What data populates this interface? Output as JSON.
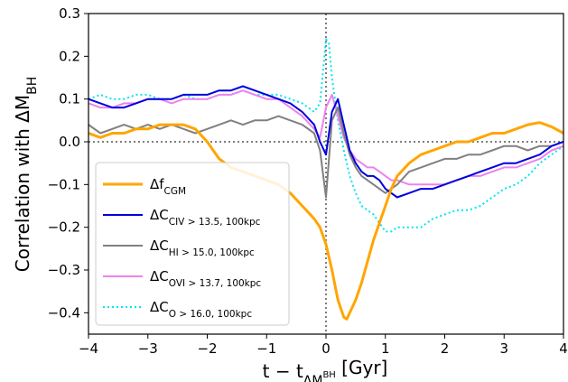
{
  "chart_data": {
    "type": "line",
    "title": "",
    "xlabel": {
      "base": "t − t",
      "sub": "ΔM",
      "subsub": "BH",
      "unit": " [Gyr]"
    },
    "ylabel": {
      "base": "Correlation with ΔM",
      "sub": "BH"
    },
    "xlim": [
      -4,
      4
    ],
    "ylim": [
      -0.45,
      0.3
    ],
    "xticks": [
      -4,
      -3,
      -2,
      -1,
      0,
      1,
      2,
      3,
      4
    ],
    "xtick_labels": [
      "−4",
      "−3",
      "−2",
      "−1",
      "0",
      "1",
      "2",
      "3",
      "4"
    ],
    "yticks": [
      -0.4,
      -0.3,
      -0.2,
      -0.1,
      0.0,
      0.1,
      0.2,
      0.3
    ],
    "ytick_labels": [
      "−0.4",
      "−0.3",
      "−0.2",
      "−0.1",
      "0.0",
      "0.1",
      "0.2",
      "0.3"
    ],
    "reference_lines": {
      "hline": 0.0,
      "vline": 0.0,
      "style": "dotted",
      "color": "#555555"
    },
    "legend_position": "lower-left",
    "series": [
      {
        "name": "Δf",
        "name_sub": "CGM",
        "color": "#ffa500",
        "dash": "solid",
        "width": 3,
        "x": [
          -4,
          -3.8,
          -3.6,
          -3.4,
          -3.2,
          -3,
          -2.8,
          -2.6,
          -2.4,
          -2.2,
          -2,
          -1.9,
          -1.8,
          -1.6,
          -1.4,
          -1.2,
          -1,
          -0.8,
          -0.6,
          -0.4,
          -0.2,
          -0.1,
          0,
          0.1,
          0.2,
          0.3,
          0.35,
          0.4,
          0.5,
          0.6,
          0.7,
          0.8,
          0.9,
          1,
          1.1,
          1.2,
          1.4,
          1.6,
          1.8,
          2,
          2.2,
          2.4,
          2.6,
          2.8,
          3,
          3.2,
          3.4,
          3.6,
          3.8,
          4
        ],
        "y": [
          0.02,
          0.01,
          0.02,
          0.02,
          0.03,
          0.03,
          0.04,
          0.04,
          0.04,
          0.03,
          0.0,
          -0.02,
          -0.04,
          -0.06,
          -0.07,
          -0.08,
          -0.09,
          -0.1,
          -0.12,
          -0.15,
          -0.18,
          -0.2,
          -0.24,
          -0.3,
          -0.37,
          -0.41,
          -0.415,
          -0.4,
          -0.37,
          -0.33,
          -0.28,
          -0.23,
          -0.19,
          -0.15,
          -0.11,
          -0.08,
          -0.05,
          -0.03,
          -0.02,
          -0.01,
          0.0,
          0.0,
          0.01,
          0.02,
          0.02,
          0.03,
          0.04,
          0.045,
          0.035,
          0.02
        ]
      },
      {
        "name": "ΔC",
        "name_sub": "CIV > 13.5, 100kpc",
        "color": "#0000dd",
        "dash": "solid",
        "width": 2,
        "x": [
          -4,
          -3.8,
          -3.6,
          -3.4,
          -3.2,
          -3,
          -2.8,
          -2.6,
          -2.4,
          -2.2,
          -2,
          -1.8,
          -1.6,
          -1.4,
          -1.2,
          -1,
          -0.8,
          -0.6,
          -0.4,
          -0.2,
          -0.1,
          0,
          0.1,
          0.2,
          0.3,
          0.4,
          0.5,
          0.6,
          0.7,
          0.8,
          0.9,
          1,
          1.1,
          1.2,
          1.4,
          1.6,
          1.8,
          2,
          2.2,
          2.4,
          2.6,
          2.8,
          3,
          3.2,
          3.4,
          3.6,
          3.8,
          4
        ],
        "y": [
          0.1,
          0.09,
          0.08,
          0.08,
          0.09,
          0.1,
          0.1,
          0.1,
          0.11,
          0.11,
          0.11,
          0.12,
          0.12,
          0.13,
          0.12,
          0.11,
          0.1,
          0.09,
          0.07,
          0.04,
          0.0,
          -0.03,
          0.07,
          0.1,
          0.04,
          -0.02,
          -0.05,
          -0.07,
          -0.08,
          -0.08,
          -0.09,
          -0.11,
          -0.12,
          -0.13,
          -0.12,
          -0.11,
          -0.11,
          -0.1,
          -0.09,
          -0.08,
          -0.07,
          -0.06,
          -0.05,
          -0.05,
          -0.04,
          -0.03,
          -0.01,
          0.0
        ]
      },
      {
        "name": "ΔC",
        "name_sub": "HI > 15.0, 100kpc",
        "color": "#808080",
        "dash": "solid",
        "width": 2,
        "x": [
          -4,
          -3.8,
          -3.6,
          -3.4,
          -3.2,
          -3,
          -2.8,
          -2.6,
          -2.4,
          -2.2,
          -2,
          -1.8,
          -1.6,
          -1.4,
          -1.2,
          -1,
          -0.8,
          -0.6,
          -0.4,
          -0.2,
          -0.1,
          0,
          0.1,
          0.2,
          0.3,
          0.4,
          0.5,
          0.6,
          0.7,
          0.8,
          0.9,
          1,
          1.1,
          1.2,
          1.4,
          1.6,
          1.8,
          2,
          2.2,
          2.4,
          2.6,
          2.8,
          3,
          3.2,
          3.4,
          3.6,
          3.8,
          4
        ],
        "y": [
          0.04,
          0.02,
          0.03,
          0.04,
          0.03,
          0.04,
          0.03,
          0.04,
          0.03,
          0.02,
          0.03,
          0.04,
          0.05,
          0.04,
          0.05,
          0.05,
          0.06,
          0.05,
          0.04,
          0.02,
          -0.02,
          -0.13,
          0.05,
          0.08,
          0.02,
          -0.03,
          -0.06,
          -0.08,
          -0.09,
          -0.1,
          -0.11,
          -0.12,
          -0.11,
          -0.1,
          -0.07,
          -0.06,
          -0.05,
          -0.04,
          -0.04,
          -0.03,
          -0.03,
          -0.02,
          -0.01,
          -0.01,
          -0.02,
          -0.01,
          -0.01,
          0.0
        ]
      },
      {
        "name": "ΔC",
        "name_sub": "OVI > 13.7, 100kpc",
        "color": "#ee82ee",
        "dash": "solid",
        "width": 2,
        "x": [
          -4,
          -3.8,
          -3.6,
          -3.4,
          -3.2,
          -3,
          -2.8,
          -2.6,
          -2.4,
          -2.2,
          -2,
          -1.8,
          -1.6,
          -1.4,
          -1.2,
          -1,
          -0.8,
          -0.6,
          -0.4,
          -0.2,
          -0.1,
          0,
          0.1,
          0.2,
          0.3,
          0.4,
          0.5,
          0.6,
          0.7,
          0.8,
          0.9,
          1,
          1.1,
          1.2,
          1.4,
          1.6,
          1.8,
          2,
          2.2,
          2.4,
          2.6,
          2.8,
          3,
          3.2,
          3.4,
          3.6,
          3.8,
          4
        ],
        "y": [
          0.09,
          0.08,
          0.08,
          0.09,
          0.09,
          0.1,
          0.1,
          0.09,
          0.1,
          0.1,
          0.1,
          0.11,
          0.11,
          0.12,
          0.11,
          0.1,
          0.1,
          0.08,
          0.06,
          0.03,
          0.01,
          0.08,
          0.11,
          0.06,
          0.01,
          -0.02,
          -0.04,
          -0.05,
          -0.06,
          -0.06,
          -0.07,
          -0.08,
          -0.09,
          -0.09,
          -0.1,
          -0.1,
          -0.1,
          -0.1,
          -0.09,
          -0.08,
          -0.08,
          -0.07,
          -0.06,
          -0.06,
          -0.05,
          -0.04,
          -0.02,
          -0.01
        ]
      },
      {
        "name": "ΔC",
        "name_sub": "O > 16.0, 100kpc",
        "color": "#00e5ee",
        "dash": "dotted",
        "width": 2,
        "x": [
          -4,
          -3.8,
          -3.6,
          -3.4,
          -3.2,
          -3,
          -2.8,
          -2.6,
          -2.4,
          -2.2,
          -2,
          -1.8,
          -1.6,
          -1.4,
          -1.2,
          -1,
          -0.8,
          -0.6,
          -0.4,
          -0.2,
          -0.1,
          0,
          0.05,
          0.1,
          0.2,
          0.3,
          0.4,
          0.5,
          0.6,
          0.7,
          0.8,
          0.9,
          1,
          1.1,
          1.2,
          1.4,
          1.6,
          1.8,
          2,
          2.2,
          2.4,
          2.6,
          2.8,
          3,
          3.2,
          3.4,
          3.6,
          3.8,
          4
        ],
        "y": [
          0.1,
          0.11,
          0.1,
          0.1,
          0.11,
          0.11,
          0.1,
          0.1,
          0.11,
          0.1,
          0.1,
          0.11,
          0.11,
          0.12,
          0.11,
          0.11,
          0.11,
          0.1,
          0.09,
          0.07,
          0.09,
          0.24,
          0.23,
          0.15,
          0.05,
          -0.02,
          -0.08,
          -0.12,
          -0.15,
          -0.16,
          -0.17,
          -0.19,
          -0.21,
          -0.21,
          -0.2,
          -0.2,
          -0.2,
          -0.18,
          -0.17,
          -0.16,
          -0.16,
          -0.15,
          -0.13,
          -0.11,
          -0.1,
          -0.08,
          -0.05,
          -0.03,
          -0.01
        ]
      }
    ]
  }
}
